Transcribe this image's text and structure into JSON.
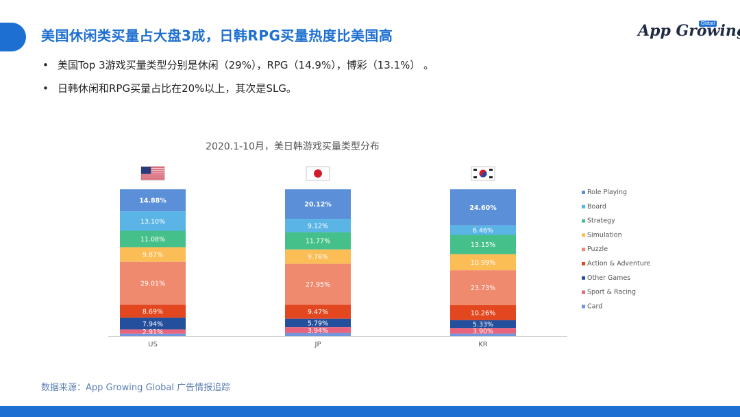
{
  "title": "美国休闲类买量占大盘3成，日韩RPG买量热度比美国高",
  "logo": {
    "text": "App Growing",
    "badge": "Global"
  },
  "bullets": [
    "美国Top 3游戏买量类型分别是休闲（29%），RPG（14.9%），博彩（13.1%） 。",
    "日韩休闲和RPG买量占比在20%以上，其次是SLG。"
  ],
  "source": "数据来源：App Growing Global 广告情报追踪",
  "colors": {
    "accent": "#1d6fd1",
    "series": [
      "#5b8fd8",
      "#5ab4e6",
      "#46c08a",
      "#fbbd55",
      "#f08a6e",
      "#e2471f",
      "#234f9c",
      "#e8637c",
      "#6f97de"
    ]
  },
  "chart_data": {
    "type": "bar",
    "stacked": true,
    "normalized": true,
    "title": "2020.1-10月，美日韩游戏买量类型分布",
    "categories": [
      "US",
      "JP",
      "KR"
    ],
    "category_icons": [
      "us-flag-icon",
      "jp-flag-icon",
      "kr-flag-icon"
    ],
    "series": [
      {
        "name": "Role Playing",
        "values": [
          14.88,
          20.12,
          24.6
        ]
      },
      {
        "name": "Board",
        "values": [
          13.1,
          9.12,
          6.46
        ]
      },
      {
        "name": "Strategy",
        "values": [
          11.08,
          11.77,
          13.15
        ]
      },
      {
        "name": "Simulation",
        "values": [
          9.87,
          9.76,
          10.99
        ]
      },
      {
        "name": "Puzzle",
        "values": [
          29.01,
          27.95,
          23.73
        ]
      },
      {
        "name": "Action & Adventure",
        "values": [
          8.69,
          9.47,
          10.26
        ]
      },
      {
        "name": "Other Games",
        "values": [
          7.94,
          5.79,
          5.33
        ]
      },
      {
        "name": "Sport & Racing",
        "values": [
          2.91,
          3.94,
          3.9
        ]
      },
      {
        "name": "Card",
        "values": [
          1.52,
          2.08,
          1.58
        ]
      }
    ],
    "data_labels": [
      [
        "14.88%",
        "20.12%",
        "24.60%"
      ],
      [
        "13.10%",
        "9.12%",
        "6.46%"
      ],
      [
        "11.08%",
        "11.77%",
        "13.15%"
      ],
      [
        "9.87%",
        "9.76%",
        "10.99%"
      ],
      [
        "29.01%",
        "27.95%",
        "23.73%"
      ],
      [
        "8.69%",
        "9.47%",
        "10.26%"
      ],
      [
        "7.94%",
        "5.79%",
        "5.33%"
      ],
      [
        "2.91%",
        "3.94%",
        "3.90%"
      ],
      [
        "",
        "",
        ""
      ]
    ],
    "legend_position": "right",
    "grid": false
  }
}
